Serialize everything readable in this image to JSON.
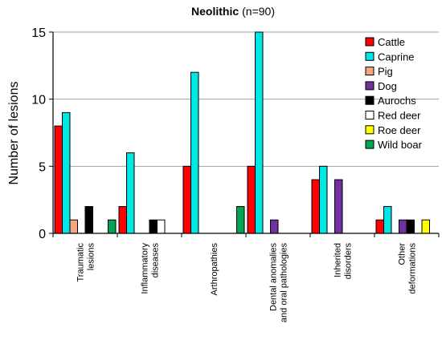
{
  "chart_data": {
    "type": "bar",
    "title_main": "Neolithic",
    "title_sub": "(n=90)",
    "xlabel": "",
    "ylabel": "Number of lesions",
    "ylim": [
      0,
      15
    ],
    "yticks": [
      0,
      5,
      10,
      15
    ],
    "grid": true,
    "legend_position": "top-right",
    "categories": [
      [
        "Traumatic",
        "lesions"
      ],
      [
        "Inflammatory",
        "diseases"
      ],
      [
        "Arthropathies"
      ],
      [
        "Dental anomalies",
        "and oral pathologies"
      ],
      [
        "Inherited",
        "disorders"
      ],
      [
        "Other",
        "deformations"
      ]
    ],
    "series": [
      {
        "name": "Cattle",
        "color": "#ff0000",
        "values": [
          8,
          2,
          5,
          5,
          4,
          1
        ]
      },
      {
        "name": "Caprine",
        "color": "#00e5e5",
        "values": [
          9,
          6,
          12,
          15,
          5,
          2
        ]
      },
      {
        "name": "Pig",
        "color": "#f4a582",
        "values": [
          1,
          0,
          0,
          0,
          0,
          0
        ]
      },
      {
        "name": "Dog",
        "color": "#7030a0",
        "values": [
          0,
          0,
          0,
          1,
          4,
          1
        ]
      },
      {
        "name": "Aurochs",
        "color": "#000000",
        "values": [
          2,
          1,
          0,
          0,
          0,
          1
        ]
      },
      {
        "name": "Red deer",
        "color": "#ffffff",
        "values": [
          0,
          1,
          0,
          0,
          0,
          0
        ]
      },
      {
        "name": "Roe deer",
        "color": "#ffff00",
        "values": [
          0,
          0,
          0,
          0,
          0,
          1
        ]
      },
      {
        "name": "Wild boar",
        "color": "#00a651",
        "values": [
          1,
          0,
          2,
          0,
          0,
          0
        ]
      }
    ]
  }
}
